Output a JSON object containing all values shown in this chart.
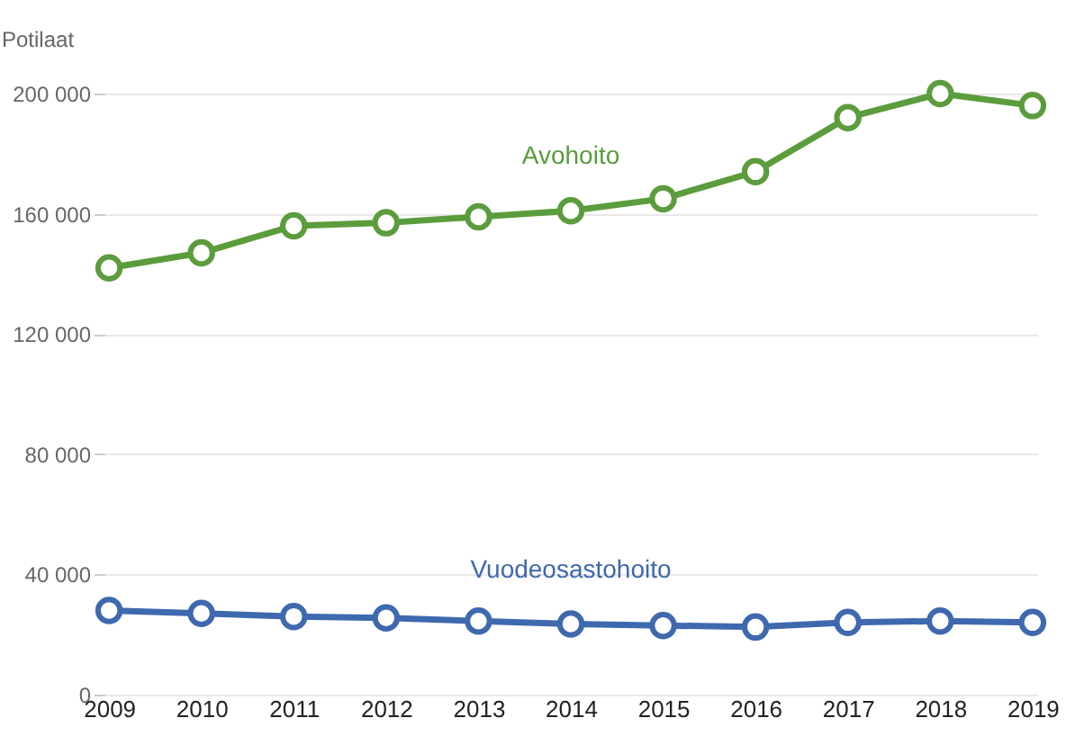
{
  "chart_data": {
    "type": "line",
    "ylabel": "Potilaat",
    "categories": [
      "2009",
      "2010",
      "2011",
      "2012",
      "2013",
      "2014",
      "2015",
      "2016",
      "2017",
      "2018",
      "2019"
    ],
    "series": [
      {
        "name": "Avohoito",
        "color": "#5b9c3c",
        "values": [
          142000,
          147000,
          156000,
          157000,
          159000,
          161000,
          165000,
          174000,
          192000,
          200000,
          196000
        ]
      },
      {
        "name": "Vuodeosastohoito",
        "color": "#3e69ae",
        "values": [
          28000,
          27000,
          26000,
          25500,
          24500,
          23500,
          23000,
          22500,
          24000,
          24500,
          24000
        ]
      }
    ],
    "ylim": [
      0,
      200000
    ],
    "yticks": [
      {
        "value": 0,
        "label": "0"
      },
      {
        "value": 40000,
        "label": "40 000"
      },
      {
        "value": 80000,
        "label": "80 000"
      },
      {
        "value": 120000,
        "label": "120 000"
      },
      {
        "value": 160000,
        "label": "160 000"
      },
      {
        "value": 200000,
        "label": "200 000"
      }
    ],
    "grid": "y",
    "marker": "circle",
    "line_style": "solid"
  }
}
